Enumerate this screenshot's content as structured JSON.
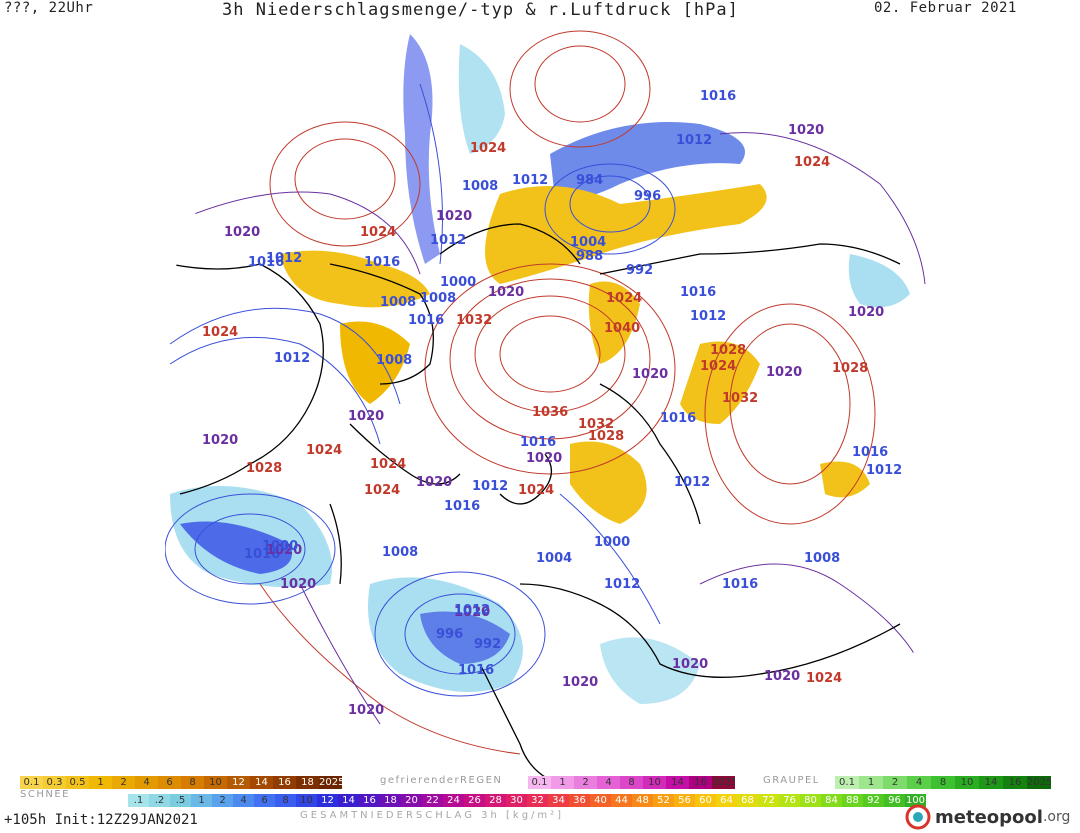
{
  "header": {
    "left": "???, 22Uhr",
    "title": "3h Niederschlagsmenge/-typ & r.Luftdruck [hPa]",
    "date": "02. Februar 2021"
  },
  "colors": {
    "high_isobar": "#c0392b",
    "mid_isobar": "#6a2fa0",
    "low_isobar": "#3a4fd8",
    "rain": "#f2c200",
    "snow_band": "#5a78e0",
    "coast": "#000000"
  },
  "isobar_labels": [
    {
      "text": "1020",
      "kind": "mid"
    },
    {
      "text": "1024",
      "kind": "high"
    },
    {
      "text": "1016",
      "kind": "low"
    },
    {
      "text": "1012",
      "kind": "low"
    },
    {
      "text": "1008",
      "kind": "low"
    },
    {
      "text": "1012",
      "kind": "low"
    },
    {
      "text": "984",
      "kind": "low"
    },
    {
      "text": "996",
      "kind": "low"
    },
    {
      "text": "1012",
      "kind": "low"
    },
    {
      "text": "1016",
      "kind": "low"
    },
    {
      "text": "1020",
      "kind": "mid"
    },
    {
      "text": "1024",
      "kind": "high"
    },
    {
      "text": "1020",
      "kind": "mid"
    },
    {
      "text": "1024",
      "kind": "high"
    },
    {
      "text": "1012",
      "kind": "low"
    },
    {
      "text": "1016",
      "kind": "low"
    },
    {
      "text": "1008",
      "kind": "low"
    },
    {
      "text": "1004",
      "kind": "low"
    },
    {
      "text": "988",
      "kind": "low"
    },
    {
      "text": "992",
      "kind": "low"
    },
    {
      "text": "1000",
      "kind": "low"
    },
    {
      "text": "1020",
      "kind": "mid"
    },
    {
      "text": "1024",
      "kind": "high"
    },
    {
      "text": "1008",
      "kind": "low"
    },
    {
      "text": "1016",
      "kind": "low"
    },
    {
      "text": "1016",
      "kind": "low"
    },
    {
      "text": "1032",
      "kind": "high"
    },
    {
      "text": "1040",
      "kind": "high"
    },
    {
      "text": "1012",
      "kind": "low"
    },
    {
      "text": "1024",
      "kind": "high"
    },
    {
      "text": "1020",
      "kind": "mid"
    },
    {
      "text": "1012",
      "kind": "low"
    },
    {
      "text": "1008",
      "kind": "low"
    },
    {
      "text": "1028",
      "kind": "high"
    },
    {
      "text": "1024",
      "kind": "high"
    },
    {
      "text": "1020",
      "kind": "mid"
    },
    {
      "text": "1028",
      "kind": "high"
    },
    {
      "text": "1020",
      "kind": "mid"
    },
    {
      "text": "1020",
      "kind": "mid"
    },
    {
      "text": "1036",
      "kind": "high"
    },
    {
      "text": "1032",
      "kind": "high"
    },
    {
      "text": "1032",
      "kind": "high"
    },
    {
      "text": "1016",
      "kind": "low"
    },
    {
      "text": "1020",
      "kind": "mid"
    },
    {
      "text": "1024",
      "kind": "high"
    },
    {
      "text": "1028",
      "kind": "high"
    },
    {
      "text": "1016",
      "kind": "low"
    },
    {
      "text": "1020",
      "kind": "mid"
    },
    {
      "text": "1024",
      "kind": "high"
    },
    {
      "text": "1020",
      "kind": "mid"
    },
    {
      "text": "1024",
      "kind": "high"
    },
    {
      "text": "1016",
      "kind": "low"
    },
    {
      "text": "1012",
      "kind": "low"
    },
    {
      "text": "1028",
      "kind": "high"
    },
    {
      "text": "1024",
      "kind": "high"
    },
    {
      "text": "1012",
      "kind": "low"
    },
    {
      "text": "1016",
      "kind": "low"
    },
    {
      "text": "1012",
      "kind": "low"
    },
    {
      "text": "1004",
      "kind": "low"
    },
    {
      "text": "1000",
      "kind": "low"
    },
    {
      "text": "1008",
      "kind": "low"
    },
    {
      "text": "1008",
      "kind": "low"
    },
    {
      "text": "1016",
      "kind": "low"
    },
    {
      "text": "1020",
      "kind": "mid"
    },
    {
      "text": "1020",
      "kind": "mid"
    },
    {
      "text": "1020",
      "kind": "mid"
    },
    {
      "text": "1012",
      "kind": "low"
    },
    {
      "text": "1016",
      "kind": "low"
    },
    {
      "text": "1020",
      "kind": "mid"
    },
    {
      "text": "1000",
      "kind": "low"
    },
    {
      "text": "996",
      "kind": "low"
    },
    {
      "text": "992",
      "kind": "low"
    },
    {
      "text": "1012",
      "kind": "low"
    },
    {
      "text": "1016",
      "kind": "low"
    },
    {
      "text": "1020",
      "kind": "mid"
    },
    {
      "text": "1020",
      "kind": "mid"
    },
    {
      "text": "1024",
      "kind": "high"
    },
    {
      "text": "1020",
      "kind": "mid"
    }
  ],
  "legend": {
    "rain": {
      "label": "",
      "values": [
        "0.1",
        "0.3",
        "0.5",
        "1",
        "2",
        "4",
        "6",
        "8",
        "10",
        "12",
        "14",
        "16",
        "18",
        "2025+"
      ],
      "colors": [
        "#f7d44a",
        "#f5cc33",
        "#f3c21a",
        "#f0b800",
        "#e9a900",
        "#e39a00",
        "#dd8b00",
        "#d67c00",
        "#c56a00",
        "#b45a00",
        "#a34a00",
        "#913c00",
        "#7e2f00",
        "#6a2500"
      ]
    },
    "snow": {
      "label": "SCHNEE"
    },
    "freezing": {
      "label": "gefrierenderREGEN",
      "values": [
        "0.1",
        "1",
        "2",
        "4",
        "8",
        "10",
        "14",
        "16",
        "2025+"
      ],
      "colors": [
        "#f6b6f0",
        "#f09ae8",
        "#ea7edf",
        "#e462d5",
        "#dc46c9",
        "#d22ab9",
        "#c40ea6",
        "#ad0080",
        "#8a0a3a"
      ]
    },
    "graupel": {
      "label": "GRAUPEL",
      "values": [
        "0.1",
        "1",
        "2",
        "4",
        "8",
        "10",
        "14",
        "16",
        "2025+"
      ],
      "colors": [
        "#bdf0b0",
        "#9de68d",
        "#7cdb6b",
        "#5ccf4a",
        "#3dc130",
        "#2bad22",
        "#1f9817",
        "#15820f",
        "#0d6a08"
      ]
    },
    "total": {
      "label": "GESAMTNIEDERSCHLAG 3h [kg/m²]",
      "values": [
        ".1",
        ".2",
        ".5",
        "1",
        "2",
        "4",
        "6",
        "8",
        "10",
        "12",
        "14",
        "16",
        "18",
        "20",
        "22",
        "24",
        "26",
        "28",
        "30",
        "32",
        "34",
        "36",
        "40",
        "44",
        "48",
        "52",
        "56",
        "60",
        "64",
        "68",
        "72",
        "76",
        "80",
        "84",
        "88",
        "92",
        "96",
        "100"
      ],
      "colors": [
        "#a6e4ec",
        "#90d8e4",
        "#7ccce0",
        "#6ab8e6",
        "#5aa2ec",
        "#4d8af0",
        "#4272f2",
        "#3a5ef0",
        "#3246e8",
        "#2b2fdc",
        "#3a1fd0",
        "#5216c4",
        "#6c10b8",
        "#860cac",
        "#a00aa0",
        "#b60a92",
        "#c80e84",
        "#d61676",
        "#e01f66",
        "#e82c55",
        "#ee3c44",
        "#f24e33",
        "#f46228",
        "#f6761f",
        "#f78a17",
        "#f89e12",
        "#f8b10e",
        "#f8c30c",
        "#f2d20c",
        "#e2dc0e",
        "#cde211",
        "#b5e414",
        "#9ce217",
        "#82dc1b",
        "#6ad41f",
        "#55ca22",
        "#43be25",
        "#33b028"
      ]
    }
  },
  "footer": {
    "run": "+105h  Init:12Z29JAN2021",
    "total_label": "GESAMTNIEDERSCHLAG 3h [kg/m²]",
    "brand": "meteopool",
    "brand_ext": ".org"
  }
}
